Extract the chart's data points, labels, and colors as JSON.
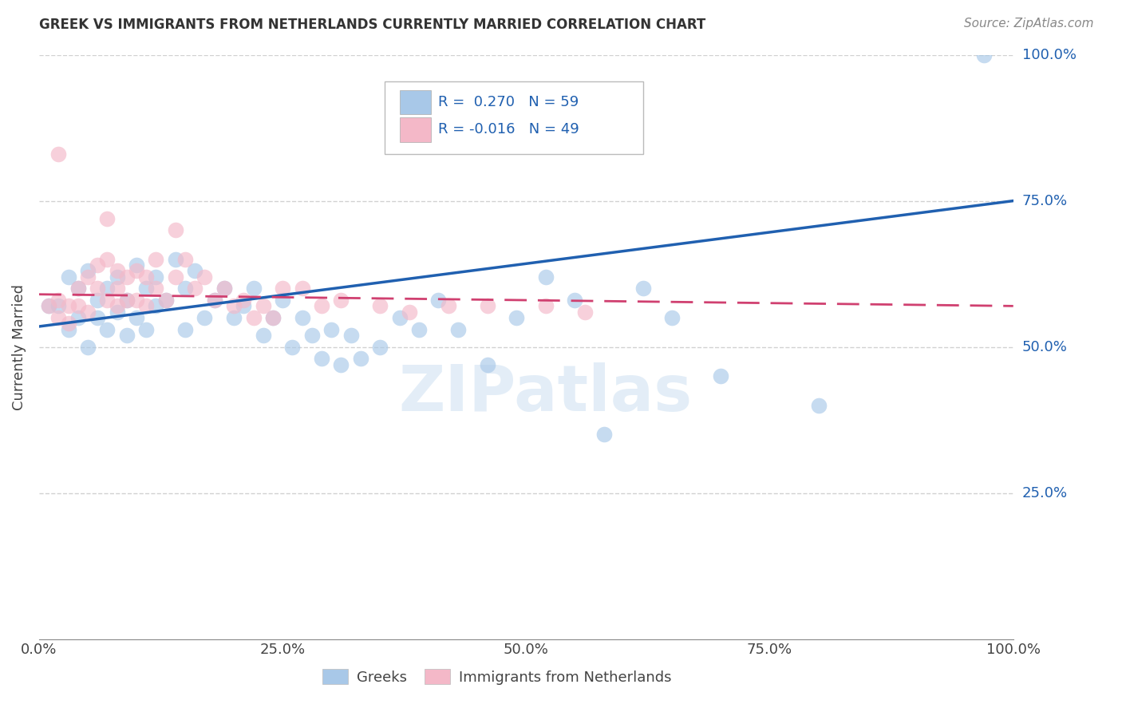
{
  "title": "GREEK VS IMMIGRANTS FROM NETHERLANDS CURRENTLY MARRIED CORRELATION CHART",
  "source": "Source: ZipAtlas.com",
  "ylabel": "Currently Married",
  "xlim": [
    0.0,
    1.0
  ],
  "ylim": [
    0.0,
    1.0
  ],
  "xtick_vals": [
    0.0,
    0.25,
    0.5,
    0.75,
    1.0
  ],
  "xtick_labels": [
    "0.0%",
    "25.0%",
    "50.0%",
    "75.0%",
    "100.0%"
  ],
  "ytick_vals": [
    0.25,
    0.5,
    0.75,
    1.0
  ],
  "ytick_labels": [
    "25.0%",
    "50.0%",
    "75.0%",
    "100.0%"
  ],
  "legend_labels": [
    "Greeks",
    "Immigrants from Netherlands"
  ],
  "blue_color": "#a8c8e8",
  "pink_color": "#f4b8c8",
  "blue_line_color": "#2060b0",
  "pink_line_color": "#d04070",
  "R_blue": 0.27,
  "N_blue": 59,
  "R_pink": -0.016,
  "N_pink": 49,
  "watermark": "ZIPatlas",
  "background_color": "#ffffff",
  "grid_color": "#cccccc",
  "blue_x": [
    0.01,
    0.02,
    0.03,
    0.03,
    0.04,
    0.04,
    0.05,
    0.05,
    0.06,
    0.06,
    0.07,
    0.07,
    0.08,
    0.08,
    0.09,
    0.09,
    0.1,
    0.1,
    0.11,
    0.11,
    0.12,
    0.12,
    0.13,
    0.14,
    0.15,
    0.15,
    0.16,
    0.17,
    0.18,
    0.19,
    0.2,
    0.21,
    0.22,
    0.23,
    0.24,
    0.25,
    0.26,
    0.27,
    0.28,
    0.29,
    0.3,
    0.31,
    0.32,
    0.33,
    0.35,
    0.37,
    0.39,
    0.41,
    0.43,
    0.46,
    0.49,
    0.52,
    0.55,
    0.58,
    0.62,
    0.65,
    0.7,
    0.8,
    0.97
  ],
  "blue_y": [
    0.57,
    0.57,
    0.62,
    0.53,
    0.6,
    0.55,
    0.63,
    0.5,
    0.58,
    0.55,
    0.6,
    0.53,
    0.62,
    0.56,
    0.58,
    0.52,
    0.64,
    0.55,
    0.6,
    0.53,
    0.62,
    0.57,
    0.58,
    0.65,
    0.6,
    0.53,
    0.63,
    0.55,
    0.58,
    0.6,
    0.55,
    0.57,
    0.6,
    0.52,
    0.55,
    0.58,
    0.5,
    0.55,
    0.52,
    0.48,
    0.53,
    0.47,
    0.52,
    0.48,
    0.5,
    0.55,
    0.53,
    0.58,
    0.53,
    0.47,
    0.55,
    0.62,
    0.58,
    0.35,
    0.6,
    0.55,
    0.45,
    0.4,
    1.0
  ],
  "pink_x": [
    0.01,
    0.02,
    0.02,
    0.03,
    0.03,
    0.04,
    0.04,
    0.05,
    0.05,
    0.06,
    0.06,
    0.07,
    0.07,
    0.08,
    0.08,
    0.08,
    0.09,
    0.09,
    0.1,
    0.1,
    0.11,
    0.11,
    0.12,
    0.12,
    0.13,
    0.14,
    0.15,
    0.16,
    0.17,
    0.18,
    0.19,
    0.2,
    0.21,
    0.22,
    0.23,
    0.24,
    0.25,
    0.27,
    0.29,
    0.31,
    0.35,
    0.38,
    0.42,
    0.46,
    0.52,
    0.56,
    0.02,
    0.07,
    0.14
  ],
  "pink_y": [
    0.57,
    0.58,
    0.55,
    0.57,
    0.54,
    0.6,
    0.57,
    0.62,
    0.56,
    0.64,
    0.6,
    0.65,
    0.58,
    0.63,
    0.6,
    0.57,
    0.62,
    0.58,
    0.63,
    0.58,
    0.62,
    0.57,
    0.6,
    0.65,
    0.58,
    0.62,
    0.65,
    0.6,
    0.62,
    0.58,
    0.6,
    0.57,
    0.58,
    0.55,
    0.57,
    0.55,
    0.6,
    0.6,
    0.57,
    0.58,
    0.57,
    0.56,
    0.57,
    0.57,
    0.57,
    0.56,
    0.83,
    0.72,
    0.7
  ]
}
